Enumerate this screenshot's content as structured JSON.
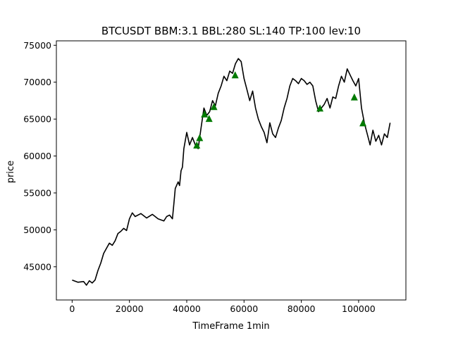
{
  "chart_data": {
    "type": "line",
    "title": "BTCUSDT BBM:3.1 BBL:280 SL:140 TP:100 lev:10",
    "xlabel": "TimeFrame 1min",
    "ylabel": "price",
    "xlim": [
      -5500,
      116500
    ],
    "ylim": [
      40500,
      75600
    ],
    "x_ticks": [
      0,
      20000,
      40000,
      60000,
      80000,
      100000
    ],
    "x_tick_labels": [
      "0",
      "20000",
      "40000",
      "60000",
      "80000",
      "100000"
    ],
    "y_ticks": [
      45000,
      50000,
      55000,
      60000,
      65000,
      70000,
      75000
    ],
    "y_tick_labels": [
      "45000",
      "50000",
      "55000",
      "60000",
      "65000",
      "70000",
      "75000"
    ],
    "grid": false,
    "series": [
      {
        "color": "#000000",
        "x": [
          0,
          2000,
          4000,
          5000,
          6000,
          7000,
          8000,
          9000,
          10000,
          11000,
          12000,
          13000,
          14000,
          15000,
          16000,
          17000,
          18000,
          19000,
          20000,
          21000,
          22000,
          24000,
          26000,
          28000,
          30000,
          32000,
          33000,
          34000,
          35000,
          35500,
          36000,
          37000,
          37500,
          38000,
          38500,
          39000,
          40000,
          41000,
          42000,
          43000,
          44000,
          45000,
          46000,
          47000,
          48000,
          49000,
          50000,
          51000,
          52000,
          53000,
          54000,
          55000,
          56000,
          57000,
          58000,
          59000,
          60000,
          61000,
          62000,
          63000,
          64000,
          65000,
          66000,
          67000,
          68000,
          69000,
          70000,
          71000,
          72000,
          73000,
          74000,
          75000,
          76000,
          77000,
          78000,
          79000,
          80000,
          81000,
          82000,
          83000,
          84000,
          85000,
          86000,
          87000,
          88000,
          89000,
          90000,
          91000,
          92000,
          93000,
          94000,
          95000,
          96000,
          97000,
          98000,
          99000,
          100000,
          101000,
          102000,
          103000,
          104000,
          105000,
          106000,
          107000,
          108000,
          109000,
          110000,
          111000
        ],
        "y": [
          43200,
          42900,
          43000,
          42500,
          43100,
          42800,
          43200,
          44500,
          45500,
          46800,
          47500,
          48200,
          47900,
          48500,
          49500,
          49800,
          50200,
          49900,
          51500,
          52300,
          51800,
          52200,
          51600,
          52100,
          51500,
          51200,
          51800,
          52000,
          51500,
          53500,
          55600,
          56500,
          56000,
          58000,
          58500,
          61000,
          63200,
          61500,
          62500,
          61500,
          61000,
          63800,
          66500,
          65500,
          66000,
          67500,
          66800,
          68500,
          69500,
          70800,
          70200,
          71500,
          71200,
          72500,
          73200,
          72800,
          70500,
          69000,
          67500,
          68800,
          66500,
          65000,
          64000,
          63200,
          61800,
          64500,
          63000,
          62500,
          63800,
          64800,
          66500,
          67800,
          69500,
          70500,
          70200,
          69800,
          70500,
          70200,
          69700,
          70000,
          69500,
          67500,
          66000,
          66500,
          67000,
          67800,
          66500,
          68000,
          67800,
          69500,
          70800,
          70000,
          71800,
          71000,
          70200,
          69500,
          70500,
          66500,
          64500,
          63000,
          61500,
          63500,
          62000,
          62800,
          61500,
          63000,
          62500,
          64500
        ]
      }
    ],
    "markers": {
      "shape": "triangle-up",
      "color": "#007a00",
      "x": [
        43500,
        44500,
        46200,
        47800,
        49500,
        56900,
        86500,
        98500,
        101500
      ],
      "y": [
        61500,
        62500,
        65700,
        65100,
        66700,
        71000,
        66500,
        68000,
        64500
      ]
    }
  }
}
